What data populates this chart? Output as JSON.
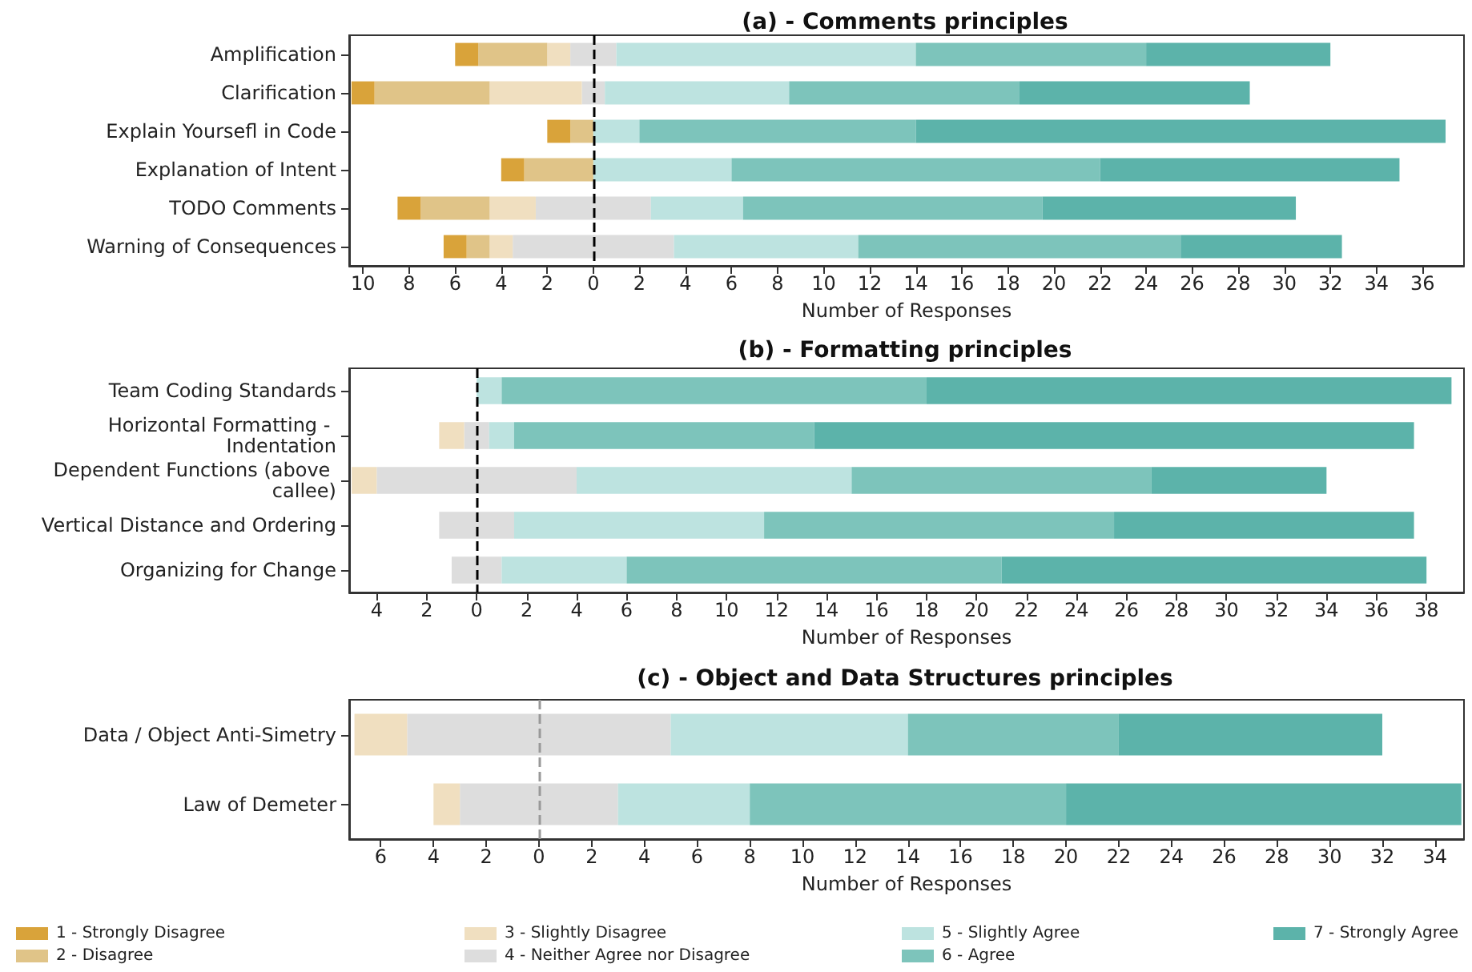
{
  "chart_data": [
    {
      "type": "bar",
      "title": "(a) - Comments principles",
      "xlabel": "Number of Responses",
      "orientation": "horizontal",
      "stacked": true,
      "legend": false,
      "categories": [
        "Amplification",
        "Clarification",
        "Explain Yoursefl in Code",
        "Explanation of Intent",
        "TODO Comments",
        "Warning of Consequences"
      ],
      "xlim": [
        -10.6,
        37.8
      ],
      "xticks": [
        {
          "value": -10,
          "label": "10"
        },
        {
          "value": -8,
          "label": "8"
        },
        {
          "value": -6,
          "label": "6"
        },
        {
          "value": -4,
          "label": "4"
        },
        {
          "value": -2,
          "label": "2"
        },
        0,
        2,
        4,
        6,
        8,
        10,
        12,
        14,
        16,
        18,
        20,
        22,
        24,
        26,
        28,
        30,
        32,
        34,
        36
      ],
      "ref_lines": [
        {
          "axis": "x",
          "value": 0,
          "color": "#000000",
          "line_style": "dashed"
        }
      ],
      "series": [
        {
          "color": "#dddddd",
          "values": [
            -1,
            -0.5,
            0,
            0,
            -2.5,
            -3.5
          ]
        },
        {
          "color": "#f0dfc0",
          "values": [
            -1,
            -4,
            0,
            0,
            -2,
            -1
          ]
        },
        {
          "color": "#e0c488",
          "values": [
            -3,
            -5,
            -1,
            -3,
            -3,
            -1
          ]
        },
        {
          "color": "#d9a33a",
          "values": [
            -1,
            -1,
            -1,
            -1,
            -1,
            -1
          ]
        },
        {
          "color": "#dddddd",
          "values": [
            1,
            0.5,
            0,
            0,
            2.5,
            3.5
          ]
        },
        {
          "color": "#bde3e0",
          "values": [
            13,
            8,
            2,
            6,
            4,
            8
          ]
        },
        {
          "color": "#7dc4bb",
          "values": [
            10,
            10,
            12,
            16,
            13,
            14
          ]
        },
        {
          "color": "#5cb3aa",
          "values": [
            8,
            10,
            23,
            13,
            11,
            7
          ]
        }
      ]
    },
    {
      "type": "bar",
      "title": "(b) - Formatting principles",
      "xlabel": "Number of Responses",
      "orientation": "horizontal",
      "stacked": true,
      "legend": false,
      "categories": [
        "Team Coding Standards",
        "Horizontal Formatting - Indentation",
        "Dependent Functions (above callee)",
        "Vertical Distance and Ordering",
        "Organizing for Change"
      ],
      "xlim": [
        -5.1,
        39.5
      ],
      "xticks": [
        {
          "value": -4,
          "label": "4"
        },
        {
          "value": -2,
          "label": "2"
        },
        0,
        2,
        4,
        6,
        8,
        10,
        12,
        14,
        16,
        18,
        20,
        22,
        24,
        26,
        28,
        30,
        32,
        34,
        36,
        38
      ],
      "ref_lines": [
        {
          "axis": "x",
          "value": 0,
          "color": "#000000",
          "line_style": "dashed"
        }
      ],
      "series": [
        {
          "color": "#dddddd",
          "values": [
            0,
            -0.5,
            -4,
            -1.5,
            -1
          ]
        },
        {
          "color": "#f0dfc0",
          "values": [
            0,
            -1,
            -1,
            0,
            0
          ]
        },
        {
          "color": "#dddddd",
          "values": [
            0,
            0.5,
            4,
            1.5,
            1
          ]
        },
        {
          "color": "#bde3e0",
          "values": [
            1,
            1,
            11,
            10,
            5
          ]
        },
        {
          "color": "#7dc4bb",
          "values": [
            17,
            12,
            12,
            14,
            15
          ]
        },
        {
          "color": "#5cb3aa",
          "values": [
            21,
            24,
            7,
            12,
            17
          ]
        }
      ]
    },
    {
      "type": "bar",
      "title": "(c) - Object and Data Structures principles",
      "xlabel": "Number of Responses",
      "orientation": "horizontal",
      "stacked": true,
      "legend": "bottom",
      "categories": [
        "Data / Object Anti-Simetry",
        "Law of Demeter"
      ],
      "xlim": [
        -7.2,
        35.1
      ],
      "xticks": [
        {
          "value": -6,
          "label": "6"
        },
        {
          "value": -4,
          "label": "4"
        },
        {
          "value": -2,
          "label": "2"
        },
        0,
        2,
        4,
        6,
        8,
        10,
        12,
        14,
        16,
        18,
        20,
        22,
        24,
        26,
        28,
        30,
        32,
        34
      ],
      "ref_lines": [
        {
          "axis": "x",
          "value": 0,
          "color": "#999999",
          "line_style": "dashed"
        }
      ],
      "series": [
        {
          "color": "#dddddd",
          "values": [
            -5,
            -3
          ]
        },
        {
          "name": "3 - Slightly Disagree",
          "color": "#f0dfc0",
          "values": [
            -2,
            -1
          ]
        },
        {
          "name": "2 - Disagree",
          "color": "#e0c488",
          "values": [
            0,
            0
          ]
        },
        {
          "name": "1 - Strongly Disagree",
          "color": "#d9a33a",
          "values": [
            0,
            0
          ]
        },
        {
          "name": "4 - Neither Agree nor Disagree",
          "color": "#dddddd",
          "values": [
            5,
            3
          ]
        },
        {
          "name": "5 - Slightly Agree",
          "color": "#bde3e0",
          "values": [
            9,
            5
          ]
        },
        {
          "name": "6 - Agree",
          "color": "#7dc4bb",
          "values": [
            8,
            12
          ]
        },
        {
          "name": "7 - Strongly Agree",
          "color": "#5cb3aa",
          "values": [
            10,
            15
          ]
        }
      ]
    }
  ]
}
